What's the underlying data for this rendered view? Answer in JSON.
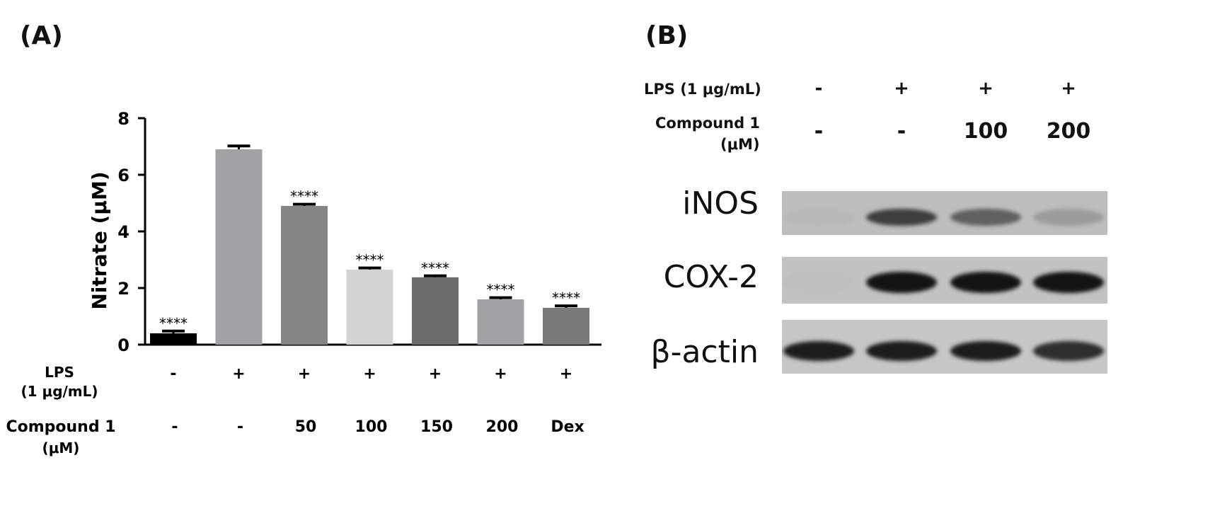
{
  "panel_a_label": "(A)",
  "panel_b_label": "(B)",
  "colors": {
    "axis": "#000000"
  },
  "chart_data": {
    "type": "bar",
    "ylabel": "Nitrate (μM)",
    "ylim": [
      0,
      8
    ],
    "yticks": [
      "0",
      "2",
      "4",
      "6",
      "8"
    ],
    "grid": false,
    "values": [
      0.4,
      6.9,
      4.9,
      2.65,
      2.38,
      1.6,
      1.3
    ],
    "errors": [
      0.08,
      0.12,
      0.06,
      0.06,
      0.05,
      0.06,
      0.07
    ],
    "significance": [
      "****",
      "",
      "****",
      "****",
      "****",
      "****",
      "****"
    ],
    "bar_colors": [
      "#000000",
      "#a2a2a6",
      "#858586",
      "#d3d3d3",
      "#6c6c6d",
      "#a2a2a6",
      "#7a7a7b"
    ],
    "row_labels": {
      "lps_line1": "LPS",
      "lps_line2": "(1 μg/mL)",
      "compound_line1": "Compound 1",
      "compound_line2": "(μM)"
    },
    "lps_row": [
      "-",
      "+",
      "+",
      "+",
      "+",
      "+",
      "+"
    ],
    "compound_row": [
      "-",
      "-",
      "50",
      "100",
      "150",
      "200",
      "Dex"
    ]
  },
  "panel_b": {
    "lps_label": "LPS (1 μg/mL)",
    "compound_label_line1": "Compound 1",
    "compound_label_line2": "(μM)",
    "lps_row": [
      "-",
      "+",
      "+",
      "+"
    ],
    "compound_row": [
      "-",
      "-",
      "100",
      "200"
    ],
    "blots": [
      {
        "label": "iNOS",
        "intensities": [
          0.03,
          0.75,
          0.55,
          0.2
        ]
      },
      {
        "label": "COX-2",
        "intensities": [
          0.02,
          1.0,
          1.0,
          1.0
        ]
      },
      {
        "label": "β-actin",
        "intensities": [
          0.95,
          0.95,
          0.95,
          0.85
        ]
      }
    ]
  }
}
